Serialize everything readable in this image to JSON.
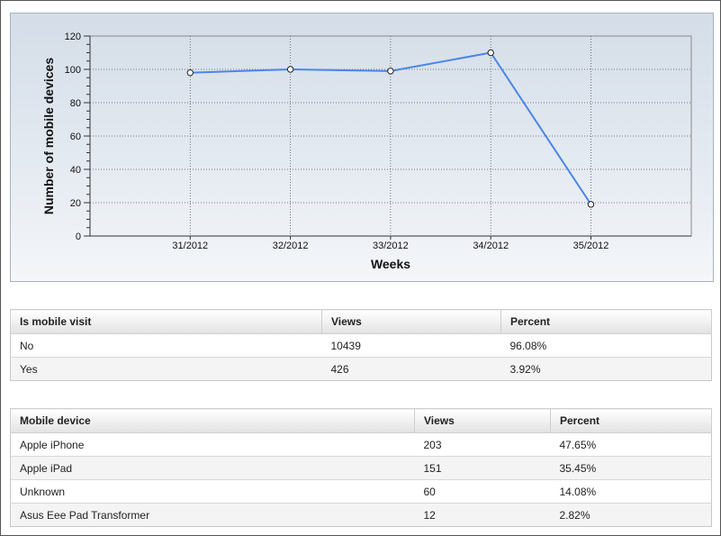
{
  "chart_data": {
    "type": "line",
    "categories": [
      "31/2012",
      "32/2012",
      "33/2012",
      "34/2012",
      "35/2012"
    ],
    "series": [
      {
        "values": [
          98,
          100,
          99,
          110,
          19
        ],
        "color": "#4a86e8"
      }
    ],
    "xlabel": "Weeks",
    "ylabel": "Number of mobile devices",
    "ylim": [
      0,
      120
    ],
    "yticks": [
      0,
      20,
      40,
      60,
      80,
      100,
      120
    ],
    "grid": true
  },
  "mobile_visit_table": {
    "headers": [
      "Is mobile visit",
      "Views",
      "Percent"
    ],
    "rows": [
      [
        "No",
        "10439",
        "96.08%"
      ],
      [
        "Yes",
        "426",
        "3.92%"
      ]
    ]
  },
  "mobile_device_table": {
    "headers": [
      "Mobile device",
      "Views",
      "Percent"
    ],
    "rows": [
      [
        "Apple iPhone",
        "203",
        "47.65%"
      ],
      [
        "Apple iPad",
        "151",
        "35.45%"
      ],
      [
        "Unknown",
        "60",
        "14.08%"
      ],
      [
        "Asus Eee Pad Transformer",
        "12",
        "2.82%"
      ]
    ]
  }
}
